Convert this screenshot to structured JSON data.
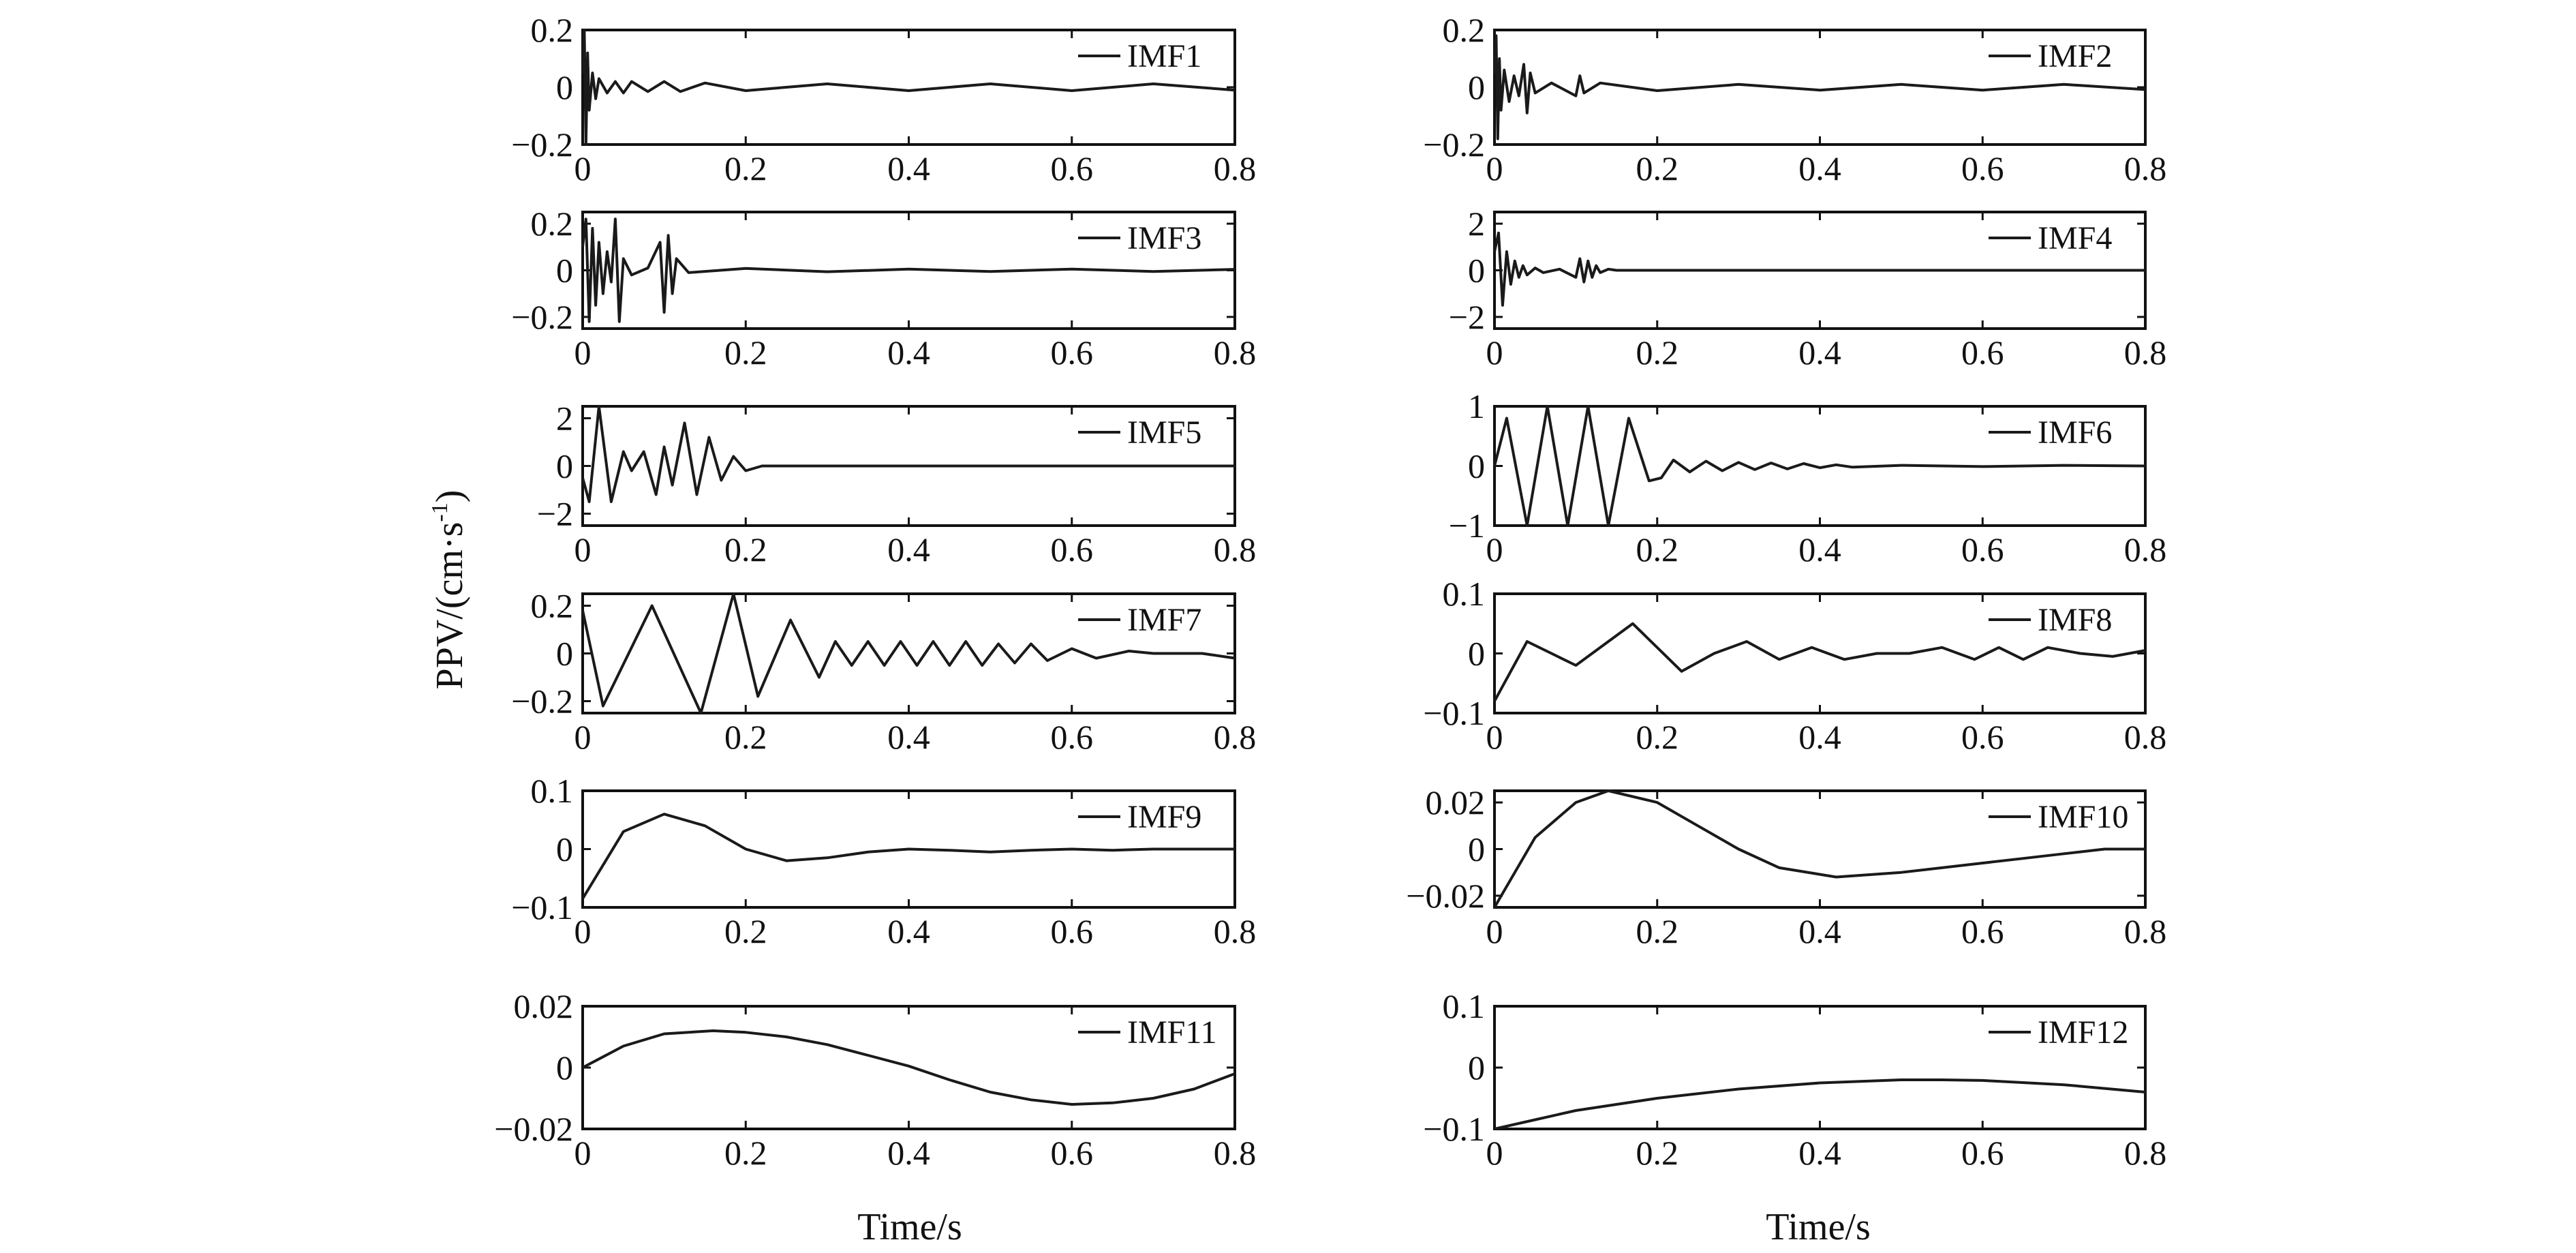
{
  "figure": {
    "ylabel": "PPV/(cm·s",
    "ylabel_sup": "-1",
    "ylabel_close": ")",
    "xlabels": [
      "Time/s",
      "Time/s"
    ]
  },
  "chart_data": [
    {
      "type": "line",
      "legend": "IMF1",
      "legend_position": "top-right",
      "xlim": [
        0,
        0.8
      ],
      "ylim": [
        -0.2,
        0.2
      ],
      "xticks": [
        0,
        0.2,
        0.4,
        0.6,
        0.8
      ],
      "xtick_labels": [
        "0",
        "0.2",
        "0.4",
        "0.6",
        "0.8"
      ],
      "yticks": [
        0.2,
        0,
        -0.2
      ],
      "ytick_labels": [
        "0.2",
        "0",
        "−0.2"
      ],
      "series": [
        {
          "x": [
            0,
            0.002,
            0.004,
            0.006,
            0.008,
            0.012,
            0.016,
            0.02,
            0.03,
            0.04,
            0.05,
            0.06,
            0.08,
            0.1,
            0.12,
            0.15,
            0.2,
            0.3,
            0.4,
            0.5,
            0.6,
            0.7,
            0.8
          ],
          "y": [
            0.05,
            0.2,
            -0.2,
            0.12,
            -0.08,
            0.05,
            -0.04,
            0.03,
            -0.02,
            0.02,
            -0.02,
            0.02,
            -0.015,
            0.02,
            -0.015,
            0.015,
            -0.012,
            0.012,
            -0.012,
            0.012,
            -0.012,
            0.012,
            -0.01
          ]
        }
      ]
    },
    {
      "type": "line",
      "legend": "IMF2",
      "legend_position": "top-right",
      "xlim": [
        0,
        0.8
      ],
      "ylim": [
        -0.2,
        0.2
      ],
      "xticks": [
        0,
        0.2,
        0.4,
        0.6,
        0.8
      ],
      "xtick_labels": [
        "0",
        "0.2",
        "0.4",
        "0.6",
        "0.8"
      ],
      "yticks": [
        0.2,
        0,
        -0.2
      ],
      "ytick_labels": [
        "0.2",
        "0",
        "−0.2"
      ],
      "series": [
        {
          "x": [
            0,
            0.002,
            0.004,
            0.006,
            0.008,
            0.012,
            0.018,
            0.024,
            0.03,
            0.036,
            0.04,
            0.044,
            0.05,
            0.07,
            0.1,
            0.105,
            0.11,
            0.13,
            0.2,
            0.3,
            0.4,
            0.5,
            0.6,
            0.7,
            0.8
          ],
          "y": [
            0.05,
            0.18,
            -0.18,
            0.1,
            -0.08,
            0.06,
            -0.05,
            0.04,
            -0.03,
            0.08,
            -0.09,
            0.05,
            -0.02,
            0.015,
            -0.03,
            0.04,
            -0.02,
            0.015,
            -0.012,
            0.01,
            -0.01,
            0.01,
            -0.01,
            0.01,
            -0.008
          ]
        }
      ]
    },
    {
      "type": "line",
      "legend": "IMF3",
      "legend_position": "top-right",
      "xlim": [
        0,
        0.8
      ],
      "ylim": [
        -0.25,
        0.25
      ],
      "xticks": [
        0,
        0.2,
        0.4,
        0.6,
        0.8
      ],
      "xtick_labels": [
        "0",
        "0.2",
        "0.4",
        "0.6",
        "0.8"
      ],
      "yticks": [
        0.2,
        0,
        -0.2
      ],
      "ytick_labels": [
        "0.2",
        "0",
        "−0.2"
      ],
      "series": [
        {
          "x": [
            0,
            0.004,
            0.008,
            0.012,
            0.016,
            0.02,
            0.025,
            0.03,
            0.035,
            0.04,
            0.045,
            0.05,
            0.06,
            0.08,
            0.095,
            0.1,
            0.105,
            0.11,
            0.115,
            0.13,
            0.2,
            0.3,
            0.4,
            0.5,
            0.6,
            0.7,
            0.8
          ],
          "y": [
            0.1,
            0.22,
            -0.22,
            0.18,
            -0.15,
            0.12,
            -0.1,
            0.08,
            -0.05,
            0.22,
            -0.22,
            0.05,
            -0.02,
            0.01,
            0.12,
            -0.18,
            0.15,
            -0.1,
            0.05,
            -0.01,
            0.008,
            -0.006,
            0.005,
            -0.005,
            0.005,
            -0.005,
            0.004
          ]
        }
      ]
    },
    {
      "type": "line",
      "legend": "IMF4",
      "legend_position": "top-right",
      "xlim": [
        0,
        0.8
      ],
      "ylim": [
        -2.5,
        2.5
      ],
      "xticks": [
        0,
        0.2,
        0.4,
        0.6,
        0.8
      ],
      "xtick_labels": [
        "0",
        "0.2",
        "0.4",
        "0.6",
        "0.8"
      ],
      "yticks": [
        2,
        0,
        -2
      ],
      "ytick_labels": [
        "2",
        "0",
        "−2"
      ],
      "series": [
        {
          "x": [
            0,
            0.005,
            0.01,
            0.015,
            0.02,
            0.025,
            0.03,
            0.035,
            0.04,
            0.05,
            0.06,
            0.08,
            0.1,
            0.105,
            0.11,
            0.115,
            0.12,
            0.125,
            0.13,
            0.14,
            0.15,
            0.2,
            0.3,
            0.4,
            0.5,
            0.6,
            0.7,
            0.8
          ],
          "y": [
            0.8,
            1.6,
            -1.5,
            0.8,
            -0.6,
            0.4,
            -0.3,
            0.2,
            -0.2,
            0.1,
            -0.1,
            0.05,
            -0.3,
            0.5,
            -0.5,
            0.4,
            -0.3,
            0.2,
            -0.1,
            0.05,
            0,
            0,
            0,
            0,
            0,
            0,
            0,
            0
          ]
        }
      ]
    },
    {
      "type": "line",
      "legend": "IMF5",
      "legend_position": "top-right",
      "xlim": [
        0,
        0.8
      ],
      "ylim": [
        -2.5,
        2.5
      ],
      "xticks": [
        0,
        0.2,
        0.4,
        0.6,
        0.8
      ],
      "xtick_labels": [
        "0",
        "0.2",
        "0.4",
        "0.6",
        "0.8"
      ],
      "yticks": [
        2,
        0,
        -2
      ],
      "ytick_labels": [
        "2",
        "0",
        "−2"
      ],
      "series": [
        {
          "x": [
            0,
            0.008,
            0.02,
            0.035,
            0.05,
            0.06,
            0.075,
            0.09,
            0.1,
            0.11,
            0.125,
            0.14,
            0.155,
            0.17,
            0.185,
            0.2,
            0.22,
            0.3,
            0.4,
            0.5,
            0.6,
            0.7,
            0.8
          ],
          "y": [
            -0.5,
            -1.5,
            2.5,
            -1.5,
            0.6,
            -0.2,
            0.6,
            -1.2,
            0.8,
            -0.8,
            1.8,
            -1.2,
            1.2,
            -0.6,
            0.4,
            -0.2,
            0,
            0,
            0,
            0,
            0,
            0,
            0
          ]
        }
      ]
    },
    {
      "type": "line",
      "legend": "IMF6",
      "legend_position": "top-right",
      "xlim": [
        0,
        0.8
      ],
      "ylim": [
        -1,
        1
      ],
      "xticks": [
        0,
        0.2,
        0.4,
        0.6,
        0.8
      ],
      "xtick_labels": [
        "0",
        "0.2",
        "0.4",
        "0.6",
        "0.8"
      ],
      "yticks": [
        1,
        0,
        -1
      ],
      "ytick_labels": [
        "1",
        "0",
        "−1"
      ],
      "series": [
        {
          "x": [
            0,
            0.015,
            0.04,
            0.065,
            0.09,
            0.115,
            0.14,
            0.165,
            0.19,
            0.205,
            0.22,
            0.24,
            0.26,
            0.28,
            0.3,
            0.32,
            0.34,
            0.36,
            0.38,
            0.4,
            0.42,
            0.44,
            0.5,
            0.6,
            0.7,
            0.8
          ],
          "y": [
            0,
            0.8,
            -1,
            1,
            -1,
            1,
            -1,
            0.8,
            -0.25,
            -0.2,
            0.1,
            -0.1,
            0.08,
            -0.08,
            0.06,
            -0.06,
            0.05,
            -0.05,
            0.04,
            -0.03,
            0.02,
            -0.02,
            0.01,
            -0.01,
            0.01,
            0
          ]
        }
      ]
    },
    {
      "type": "line",
      "legend": "IMF7",
      "legend_position": "top-right",
      "xlim": [
        0,
        0.8
      ],
      "ylim": [
        -0.25,
        0.25
      ],
      "xticks": [
        0,
        0.2,
        0.4,
        0.6,
        0.8
      ],
      "xtick_labels": [
        "0",
        "0.2",
        "0.4",
        "0.6",
        "0.8"
      ],
      "yticks": [
        0.2,
        0,
        -0.2
      ],
      "ytick_labels": [
        "0.2",
        "0",
        "−0.2"
      ],
      "series": [
        {
          "x": [
            0,
            0.025,
            0.085,
            0.145,
            0.185,
            0.215,
            0.255,
            0.29,
            0.31,
            0.33,
            0.35,
            0.37,
            0.39,
            0.41,
            0.43,
            0.45,
            0.47,
            0.49,
            0.51,
            0.53,
            0.55,
            0.57,
            0.6,
            0.63,
            0.67,
            0.7,
            0.73,
            0.76,
            0.8
          ],
          "y": [
            0.18,
            -0.22,
            0.2,
            -0.25,
            0.25,
            -0.18,
            0.14,
            -0.1,
            0.05,
            -0.05,
            0.05,
            -0.05,
            0.05,
            -0.05,
            0.05,
            -0.05,
            0.05,
            -0.05,
            0.04,
            -0.04,
            0.04,
            -0.03,
            0.02,
            -0.02,
            0.01,
            0,
            0,
            0,
            -0.02
          ]
        }
      ]
    },
    {
      "type": "line",
      "legend": "IMF8",
      "legend_position": "top-right",
      "xlim": [
        0,
        0.8
      ],
      "ylim": [
        -0.1,
        0.1
      ],
      "xticks": [
        0,
        0.2,
        0.4,
        0.6,
        0.8
      ],
      "xtick_labels": [
        "0",
        "0.2",
        "0.4",
        "0.6",
        "0.8"
      ],
      "yticks": [
        0.1,
        0,
        -0.1
      ],
      "ytick_labels": [
        "0.1",
        "0",
        "−0.1"
      ],
      "series": [
        {
          "x": [
            0,
            0.04,
            0.1,
            0.17,
            0.23,
            0.27,
            0.31,
            0.35,
            0.39,
            0.43,
            0.47,
            0.51,
            0.55,
            0.59,
            0.62,
            0.65,
            0.68,
            0.72,
            0.76,
            0.8
          ],
          "y": [
            -0.08,
            0.02,
            -0.02,
            0.05,
            -0.03,
            0,
            0.02,
            -0.01,
            0.01,
            -0.01,
            0,
            0,
            0.01,
            -0.01,
            0.01,
            -0.01,
            0.01,
            0,
            -0.005,
            0.005
          ]
        }
      ]
    },
    {
      "type": "line",
      "legend": "IMF9",
      "legend_position": "top-right",
      "xlim": [
        0,
        0.8
      ],
      "ylim": [
        -0.1,
        0.1
      ],
      "xticks": [
        0,
        0.2,
        0.4,
        0.6,
        0.8
      ],
      "xtick_labels": [
        "0",
        "0.2",
        "0.4",
        "0.6",
        "0.8"
      ],
      "yticks": [
        0.1,
        0,
        -0.1
      ],
      "ytick_labels": [
        "0.1",
        "0",
        "−0.1"
      ],
      "series": [
        {
          "x": [
            0,
            0.05,
            0.1,
            0.15,
            0.2,
            0.25,
            0.3,
            0.35,
            0.4,
            0.45,
            0.5,
            0.55,
            0.6,
            0.65,
            0.7,
            0.75,
            0.8
          ],
          "y": [
            -0.085,
            0.03,
            0.06,
            0.04,
            0,
            -0.02,
            -0.015,
            -0.005,
            0,
            -0.002,
            -0.005,
            -0.002,
            0,
            -0.002,
            0,
            0,
            0
          ]
        }
      ]
    },
    {
      "type": "line",
      "legend": "IMF10",
      "legend_position": "top-right",
      "xlim": [
        0,
        0.8
      ],
      "ylim": [
        -0.025,
        0.025
      ],
      "xticks": [
        0,
        0.2,
        0.4,
        0.6,
        0.8
      ],
      "xtick_labels": [
        "0",
        "0.2",
        "0.4",
        "0.6",
        "0.8"
      ],
      "yticks": [
        0.02,
        0,
        -0.02
      ],
      "ytick_labels": [
        "0.02",
        "0",
        "−0.02"
      ],
      "series": [
        {
          "x": [
            0,
            0.05,
            0.1,
            0.14,
            0.2,
            0.25,
            0.3,
            0.35,
            0.42,
            0.5,
            0.55,
            0.6,
            0.65,
            0.7,
            0.75,
            0.8
          ],
          "y": [
            -0.025,
            0.005,
            0.02,
            0.025,
            0.02,
            0.01,
            0,
            -0.008,
            -0.012,
            -0.01,
            -0.008,
            -0.006,
            -0.004,
            -0.002,
            0,
            0
          ]
        }
      ]
    },
    {
      "type": "line",
      "legend": "IMF11",
      "legend_position": "top-right",
      "xlim": [
        0,
        0.8
      ],
      "ylim": [
        -0.02,
        0.02
      ],
      "xticks": [
        0,
        0.2,
        0.4,
        0.6,
        0.8
      ],
      "xtick_labels": [
        "0",
        "0.2",
        "0.4",
        "0.6",
        "0.8"
      ],
      "yticks": [
        0.02,
        0,
        -0.02
      ],
      "ytick_labels": [
        "0.02",
        "0",
        "−0.02"
      ],
      "series": [
        {
          "x": [
            0,
            0.05,
            0.1,
            0.16,
            0.2,
            0.25,
            0.3,
            0.35,
            0.4,
            0.45,
            0.5,
            0.55,
            0.6,
            0.65,
            0.7,
            0.75,
            0.8
          ],
          "y": [
            0,
            0.007,
            0.011,
            0.012,
            0.0115,
            0.01,
            0.0075,
            0.004,
            0.0005,
            -0.004,
            -0.008,
            -0.0105,
            -0.012,
            -0.0115,
            -0.01,
            -0.007,
            -0.002
          ]
        }
      ]
    },
    {
      "type": "line",
      "legend": "IMF12",
      "legend_position": "top-right",
      "xlim": [
        0,
        0.8
      ],
      "ylim": [
        -0.1,
        0.1
      ],
      "xticks": [
        0,
        0.2,
        0.4,
        0.6,
        0.8
      ],
      "xtick_labels": [
        "0",
        "0.2",
        "0.4",
        "0.6",
        "0.8"
      ],
      "yticks": [
        0.1,
        0,
        -0.1
      ],
      "ytick_labels": [
        "0.1",
        "0",
        "−0.1"
      ],
      "series": [
        {
          "x": [
            0,
            0.05,
            0.1,
            0.2,
            0.3,
            0.4,
            0.5,
            0.55,
            0.6,
            0.7,
            0.8
          ],
          "y": [
            -0.1,
            -0.085,
            -0.07,
            -0.05,
            -0.035,
            -0.025,
            -0.02,
            -0.02,
            -0.021,
            -0.028,
            -0.04
          ]
        }
      ]
    }
  ]
}
